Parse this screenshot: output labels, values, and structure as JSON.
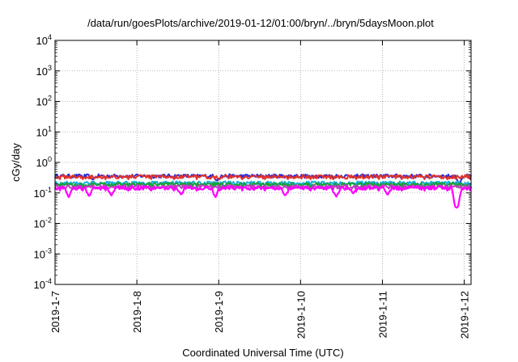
{
  "chart_data": {
    "type": "line",
    "title": "/data/run/goesPlots/archive/2019-01-12/01:00/bryn/../bryn/5daysMoon.plot",
    "xlabel": "Coordinated Universal Time (UTC)",
    "ylabel": "cGy/day",
    "y_scale": "log",
    "ylim_exponents": [
      -4,
      4
    ],
    "yticks": [
      {
        "base": "10",
        "exp": "-4"
      },
      {
        "base": "10",
        "exp": "-3"
      },
      {
        "base": "10",
        "exp": "-2"
      },
      {
        "base": "10",
        "exp": "-1"
      },
      {
        "base": "10",
        "exp": "0"
      },
      {
        "base": "10",
        "exp": "1"
      },
      {
        "base": "10",
        "exp": "2"
      },
      {
        "base": "10",
        "exp": "3"
      },
      {
        "base": "10",
        "exp": "4"
      }
    ],
    "x_range_days": [
      "2019-01-07T00:00",
      "2019-01-12T02:00"
    ],
    "xticks": [
      "2019-1-7",
      "2019-1-8",
      "2019-1-9",
      "2019-1-10",
      "2019-1-11",
      "2019-1-12"
    ],
    "grid": true,
    "legend": "none",
    "series": [
      {
        "color": "#2b2bd6",
        "baseline": 0.36,
        "dips": [
          {
            "t": "2019-01-07T11:00",
            "v": 0.27
          },
          {
            "t": "2019-01-08T23:30",
            "v": 0.25
          },
          {
            "t": "2019-01-11T22:30",
            "v": 0.2
          }
        ]
      },
      {
        "color": "#e0332c",
        "baseline": 0.34,
        "dips": []
      },
      {
        "color": "#18b0d8",
        "baseline": 0.21,
        "dips": []
      },
      {
        "color": "#1aa03a",
        "baseline": 0.19,
        "dips": []
      },
      {
        "color": "#c040c0",
        "baseline": 0.16,
        "dips": []
      },
      {
        "color": "#ff00ff",
        "baseline": 0.145,
        "dips": [
          {
            "t": "2019-01-07T04:00",
            "v": 0.07
          },
          {
            "t": "2019-01-07T10:00",
            "v": 0.075
          },
          {
            "t": "2019-01-07T16:30",
            "v": 0.08
          },
          {
            "t": "2019-01-08T13:00",
            "v": 0.085
          },
          {
            "t": "2019-01-08T23:00",
            "v": 0.07
          },
          {
            "t": "2019-01-09T19:30",
            "v": 0.08
          },
          {
            "t": "2019-01-10T10:30",
            "v": 0.075
          },
          {
            "t": "2019-01-10T15:30",
            "v": 0.095
          },
          {
            "t": "2019-01-11T01:30",
            "v": 0.085
          },
          {
            "t": "2019-01-11T21:30",
            "v": 0.032
          },
          {
            "t": "2019-01-11T22:00",
            "v": 0.032
          }
        ]
      }
    ]
  }
}
